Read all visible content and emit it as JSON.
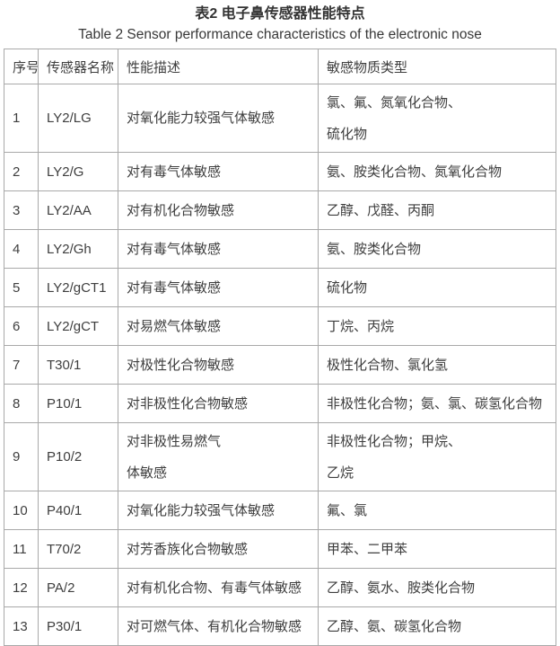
{
  "caption": {
    "title_cn": "表2 电子鼻传感器性能特点",
    "title_en": "Table 2 Sensor performance characteristics of the electronic nose"
  },
  "table": {
    "headers": [
      "序号",
      "传感器名称",
      "性能描述",
      "敏感物质类型"
    ],
    "rows": [
      {
        "tall": true,
        "cells": [
          [
            "1"
          ],
          [
            "LY2/LG"
          ],
          [
            "对氧化能力较强气体敏感"
          ],
          [
            "氯、氟、氮氧化合物、",
            "硫化物"
          ]
        ]
      },
      {
        "tall": false,
        "cells": [
          [
            "2"
          ],
          [
            "LY2/G"
          ],
          [
            "对有毒气体敏感"
          ],
          [
            "氨、胺类化合物、氮氧化合物"
          ]
        ]
      },
      {
        "tall": false,
        "cells": [
          [
            "3"
          ],
          [
            "LY2/AA"
          ],
          [
            "对有机化合物敏感"
          ],
          [
            "乙醇、戊醛、丙酮"
          ]
        ]
      },
      {
        "tall": false,
        "cells": [
          [
            "4"
          ],
          [
            "LY2/Gh"
          ],
          [
            "对有毒气体敏感"
          ],
          [
            "氨、胺类化合物"
          ]
        ]
      },
      {
        "tall": false,
        "cells": [
          [
            "5"
          ],
          [
            "LY2/gCT1"
          ],
          [
            "对有毒气体敏感"
          ],
          [
            "硫化物"
          ]
        ]
      },
      {
        "tall": false,
        "cells": [
          [
            "6"
          ],
          [
            "LY2/gCT"
          ],
          [
            "对易燃气体敏感"
          ],
          [
            "丁烷、丙烷"
          ]
        ]
      },
      {
        "tall": false,
        "cells": [
          [
            "7"
          ],
          [
            "T30/1"
          ],
          [
            "对极性化合物敏感"
          ],
          [
            "极性化合物、氯化氢"
          ]
        ]
      },
      {
        "tall": false,
        "cells": [
          [
            "8"
          ],
          [
            "P10/1"
          ],
          [
            "对非极性化合物敏感"
          ],
          [
            "非极性化合物；氨、氯、碳氢化合物"
          ]
        ]
      },
      {
        "tall": true,
        "cells": [
          [
            "9"
          ],
          [
            "P10/2"
          ],
          [
            "对非极性易燃气",
            "体敏感"
          ],
          [
            "非极性化合物；甲烷、",
            "乙烷"
          ]
        ]
      },
      {
        "tall": false,
        "cells": [
          [
            "10"
          ],
          [
            "P40/1"
          ],
          [
            "对氧化能力较强气体敏感"
          ],
          [
            "氟、氯"
          ]
        ]
      },
      {
        "tall": false,
        "cells": [
          [
            "11"
          ],
          [
            "T70/2"
          ],
          [
            "对芳香族化合物敏感"
          ],
          [
            "甲苯、二甲苯"
          ]
        ]
      },
      {
        "tall": false,
        "cells": [
          [
            "12"
          ],
          [
            "PA/2"
          ],
          [
            "对有机化合物、有毒气体敏感"
          ],
          [
            "乙醇、氨水、胺类化合物"
          ]
        ]
      },
      {
        "tall": false,
        "cells": [
          [
            "13"
          ],
          [
            "P30/1"
          ],
          [
            "对可燃气体、有机化合物敏感"
          ],
          [
            "乙醇、氨、碳氢化合物"
          ]
        ]
      }
    ]
  },
  "colors": {
    "background": "#ffffff",
    "text": "#3e3e3e",
    "border": "#a9a9a9"
  }
}
